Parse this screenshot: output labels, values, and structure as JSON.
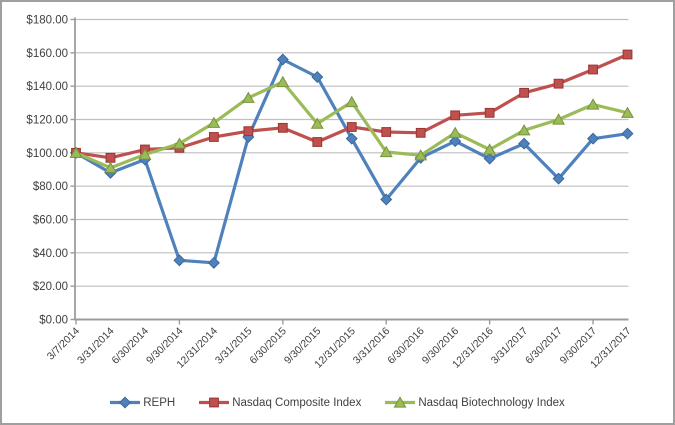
{
  "window": {
    "background": "#FFFFFF",
    "border_color": "#9F9F9F"
  },
  "chart_data": {
    "type": "line",
    "title": "",
    "categories": [
      "3/7/2014",
      "3/31/2014",
      "6/30/2014",
      "9/30/2014",
      "12/31/2014",
      "3/31/2015",
      "6/30/2015",
      "9/30/2015",
      "12/31/2015",
      "3/31/2016",
      "6/30/2016",
      "9/30/2016",
      "12/31/2016",
      "3/31/2017",
      "6/30/2017",
      "9/30/2017",
      "12/31/2017"
    ],
    "series": [
      {
        "name": "REPH",
        "marker": "diamond",
        "color": "#4F81BD",
        "marker_border": "#3A679C",
        "values": [
          100,
          88,
          96,
          35.5,
          34,
          109.5,
          156,
          145.5,
          108.5,
          72,
          97,
          107,
          96.5,
          105.5,
          84.5,
          108.5,
          111.5
        ]
      },
      {
        "name": "Nasdaq Composite Index",
        "marker": "square",
        "color": "#C0504D",
        "marker_border": "#963634",
        "values": [
          100,
          97,
          102,
          103,
          109.5,
          113,
          115,
          106.5,
          115.5,
          112.5,
          112,
          122.5,
          124,
          136,
          141.5,
          150,
          159
        ]
      },
      {
        "name": "Nasdaq Biotechnology Index",
        "marker": "triangle",
        "color": "#9BBB59",
        "marker_border": "#77933C",
        "values": [
          100,
          91,
          99,
          105.5,
          118,
          133,
          142.5,
          117.5,
          130.5,
          100.5,
          98.5,
          112,
          102,
          113.5,
          120,
          129,
          124
        ]
      }
    ],
    "y_axis": {
      "min": 0,
      "max": 180,
      "step": 20,
      "tick_labels": [
        "$0.00",
        "$20.00",
        "$40.00",
        "$60.00",
        "$80.00",
        "$100.00",
        "$120.00",
        "$140.00",
        "$160.00",
        "$180.00"
      ]
    },
    "x_axis": {
      "label_rotation_deg": -45,
      "tick_mark_interval": 3
    },
    "grid": true,
    "legend_position": "bottom",
    "style": {
      "grid_color": "#BFBFBF",
      "axis_color": "#9C9C9C",
      "text_color": "#404040"
    }
  }
}
